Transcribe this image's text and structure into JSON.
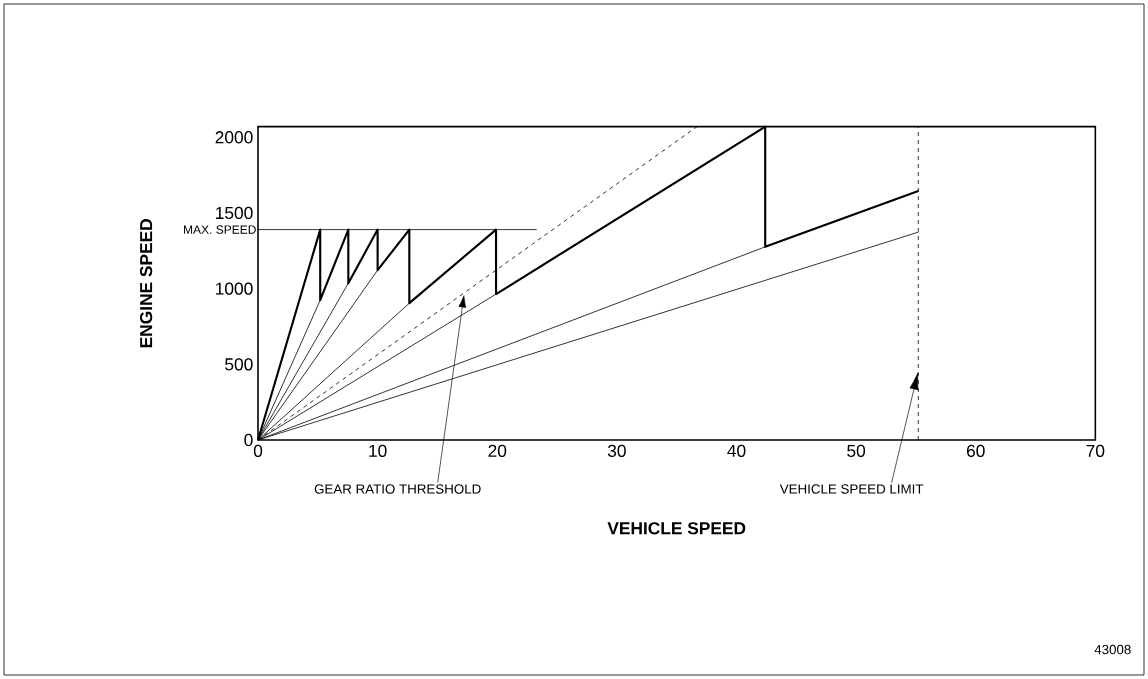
{
  "chart_data": {
    "type": "line",
    "xlabel": "VEHICLE SPEED",
    "ylabel": "ENGINE SPEED",
    "xlim": [
      0,
      70
    ],
    "ylim": [
      0,
      2070
    ],
    "xticks": [
      0,
      10,
      20,
      30,
      40,
      50,
      60,
      70
    ],
    "yticks": [
      0,
      500,
      1000,
      1500,
      2000
    ],
    "grid": false,
    "legend": false,
    "marker": "none",
    "series": [
      {
        "color": "#000000",
        "line_style": "solid",
        "x": [
          0,
          5.2,
          5.2,
          7.55,
          7.55,
          10.0,
          10.0,
          12.65,
          12.65,
          19.9,
          19.9,
          42.4,
          42.4,
          55.2
        ],
        "values": [
          0,
          1390,
          924,
          1390,
          1036,
          1390,
          1122,
          1390,
          904,
          1390,
          964,
          2070,
          1276,
          1645
        ]
      },
      {
        "name": "MAX. SPEED",
        "color": "#000000",
        "line_style": "solid",
        "x": [
          0,
          23.3
        ],
        "values": [
          1390,
          1390
        ]
      },
      {
        "color": "#000000",
        "line_style": "solid",
        "x": [
          0,
          5.2
        ],
        "values": [
          0,
          924
        ]
      },
      {
        "color": "#000000",
        "line_style": "solid",
        "x": [
          0,
          7.55
        ],
        "values": [
          0,
          1036
        ]
      },
      {
        "color": "#000000",
        "line_style": "solid",
        "x": [
          0,
          10.0
        ],
        "values": [
          0,
          1122
        ]
      },
      {
        "color": "#000000",
        "line_style": "solid",
        "x": [
          0,
          12.65
        ],
        "values": [
          0,
          904
        ]
      },
      {
        "color": "#000000",
        "line_style": "solid",
        "x": [
          0,
          19.9
        ],
        "values": [
          0,
          964
        ]
      },
      {
        "color": "#000000",
        "line_style": "solid",
        "x": [
          0,
          42.4
        ],
        "values": [
          0,
          1276
        ]
      },
      {
        "color": "#000000",
        "line_style": "solid",
        "x": [
          0,
          55.2
        ],
        "values": [
          0,
          1373
        ]
      },
      {
        "name": "GEAR RATIO THRESHOLD",
        "color": "#000000",
        "line_style": "dashed",
        "x": [
          0,
          36.7
        ],
        "values": [
          0,
          2070
        ]
      }
    ],
    "ref_lines": [
      {
        "axis": "x",
        "value": 55.2,
        "line_style": "dashed",
        "color": "#000000",
        "label": "VEHICLE SPEED LIMIT"
      }
    ],
    "annotations": [
      "43008"
    ]
  }
}
